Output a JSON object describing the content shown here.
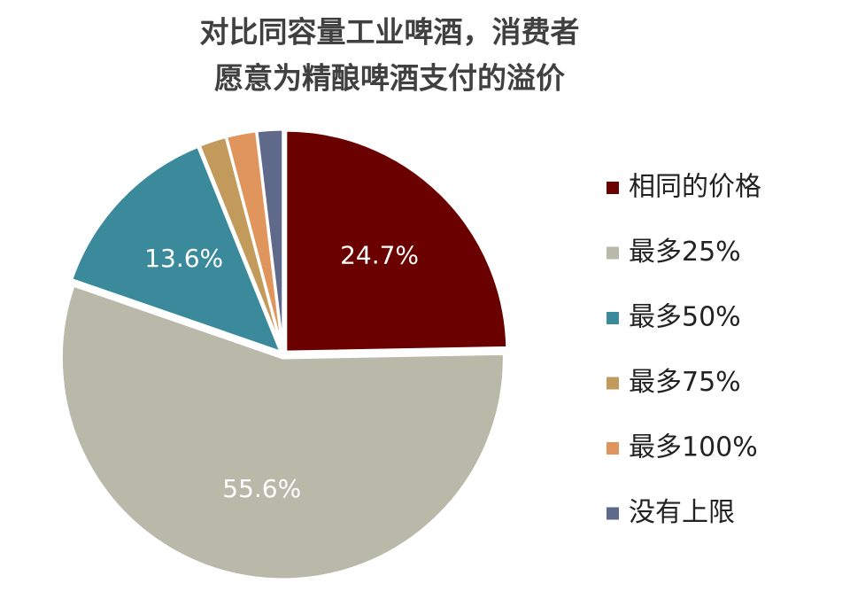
{
  "chart_data": {
    "type": "pie",
    "title": [
      "对比同容量工业啤酒，消费者",
      "愿意为精酿啤酒支付的溢价"
    ],
    "categories": [
      "相同的价格",
      "最多25%",
      "最多50%",
      "最多75%",
      "最多100%",
      "没有上限"
    ],
    "values": [
      24.7,
      55.6,
      13.6,
      2.0,
      2.2,
      1.9
    ],
    "value_labels": [
      "24.7%",
      "55.6%",
      "13.6%",
      null,
      null,
      null
    ],
    "colors": [
      "#6b0000",
      "#b9b9a9",
      "#3b8a9c",
      "#c29b5c",
      "#e0955d",
      "#5f6a8b"
    ],
    "legend": "right"
  }
}
